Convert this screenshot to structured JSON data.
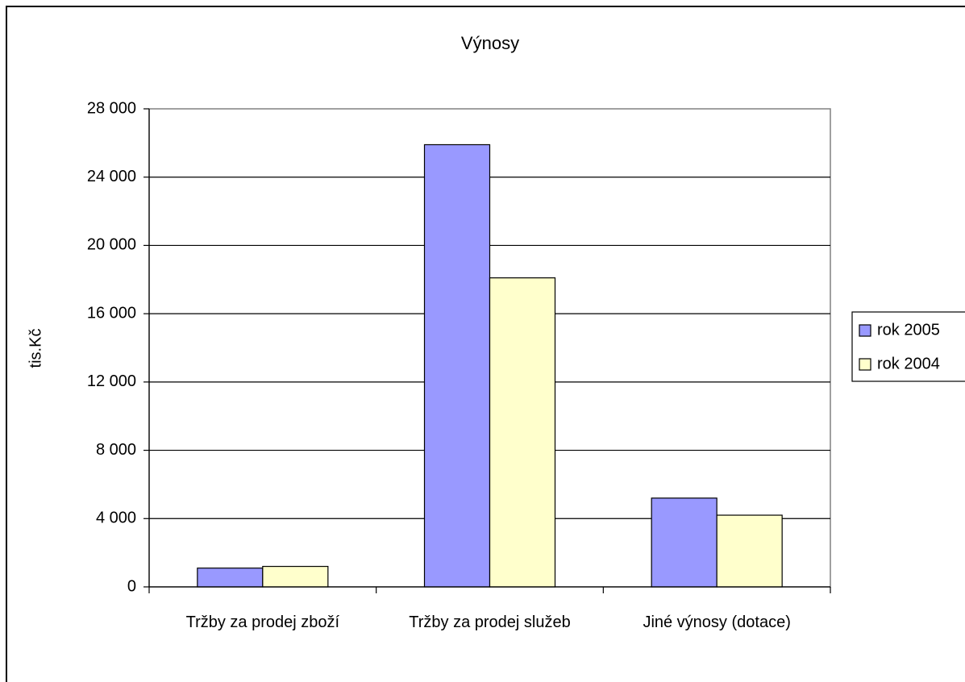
{
  "chart_data": {
    "type": "bar",
    "title": "Výnosy",
    "y_label": "tis.Kč",
    "categories": [
      "Tržby za prodej zboží",
      "Tržby za prodej služeb",
      "Jiné výnosy (dotace)"
    ],
    "series": [
      {
        "name": "rok 2005",
        "color": "#9999ff",
        "values": [
          1100,
          25900,
          5200
        ]
      },
      {
        "name": "rok 2004",
        "color": "#ffffcc",
        "values": [
          1200,
          18100,
          4200
        ]
      }
    ],
    "ylim": [
      0,
      28000
    ],
    "yticks": [
      0,
      {
        "value": 4000,
        "label": "4 000"
      },
      {
        "value": 8000,
        "label": "8 000"
      },
      {
        "value": 12000,
        "label": "12 000"
      },
      {
        "value": 16000,
        "label": "16 000"
      },
      {
        "value": 20000,
        "label": "20 000"
      },
      {
        "value": 24000,
        "label": "24 000"
      },
      {
        "value": 28000,
        "label": "28 000"
      }
    ],
    "grid": true,
    "legend": "right"
  }
}
